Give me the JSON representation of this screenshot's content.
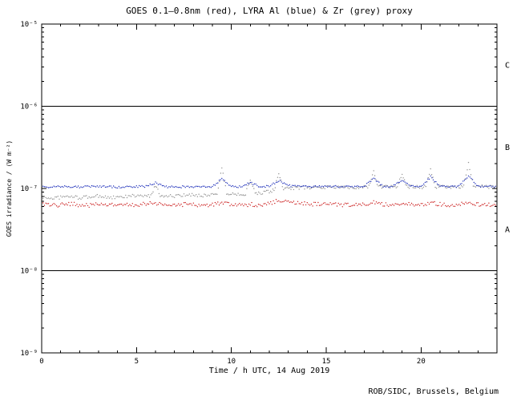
{
  "footer": {
    "credit": "ROB/SIDC, Brussels, Belgium"
  },
  "chart_data": {
    "type": "line",
    "title": "GOES 0.1–0.8nm (red), LYRA Al (blue) & Zr (grey) proxy",
    "xlabel": "Time / h UTC, 14 Aug 2019",
    "ylabel": "GOES irradiance / (W m⁻²)",
    "xlim": [
      0,
      24
    ],
    "ylim_exponents": [
      -9,
      -5
    ],
    "grid": false,
    "x_major_ticks": [
      0,
      5,
      10,
      15,
      20
    ],
    "x_minor_step": 1,
    "y_ticks": [
      {
        "label": "10⁻⁵",
        "exp": -5
      },
      {
        "label": "10⁻⁶",
        "exp": -6
      },
      {
        "label": "10⁻⁷",
        "exp": -7
      },
      {
        "label": "10⁻⁸",
        "exp": -8
      },
      {
        "label": "10⁻⁹",
        "exp": -9
      }
    ],
    "hlines": [
      1e-06,
      1e-08
    ],
    "flare_classes": [
      {
        "label": "C",
        "value": 3.16e-06
      },
      {
        "label": "B",
        "value": 3.16e-07
      },
      {
        "label": "A",
        "value": 3.16e-08
      }
    ],
    "colors": {
      "red": "#cc2222",
      "blue": "#2233bb",
      "grey": "#909090",
      "axis": "#000000",
      "background": "#ffffff"
    },
    "series": [
      {
        "name": "LYRA Zr proxy",
        "color_key": "grey",
        "noise": 0.02,
        "x": [
          0,
          0.5,
          1,
          1.5,
          2,
          2.5,
          3,
          3.5,
          4,
          4.5,
          5,
          5.5,
          5.75,
          6,
          6.25,
          6.5,
          7,
          7.5,
          8,
          8.5,
          9,
          9.25,
          9.5,
          9.75,
          10,
          10.5,
          10.75,
          11,
          11.25,
          11.5,
          12,
          12.25,
          12.5,
          12.75,
          13,
          13.5,
          14,
          14.5,
          15,
          15.5,
          16,
          16.5,
          17,
          17.25,
          17.5,
          17.75,
          18,
          18.5,
          18.75,
          19,
          19.25,
          19.5,
          20,
          20.25,
          20.5,
          20.75,
          21,
          21.5,
          22,
          22.25,
          22.5,
          22.75,
          23,
          23.5,
          24
        ],
        "values": [
          7.8e-08,
          7.6e-08,
          7.8e-08,
          8e-08,
          7.7e-08,
          7.9e-08,
          8.1e-08,
          7.8e-08,
          7.7e-08,
          8e-08,
          8.2e-08,
          8e-08,
          8.1e-08,
          1.1e-07,
          8.2e-08,
          8.2e-08,
          8e-08,
          8.2e-08,
          8.4e-08,
          8.2e-08,
          8.5e-08,
          8.6e-08,
          1.8e-07,
          8.6e-08,
          8.6e-08,
          8.5e-08,
          8.6e-08,
          1.3e-07,
          8.7e-08,
          8.6e-08,
          9.2e-08,
          9.5e-08,
          1.5e-07,
          9.8e-08,
          1e-07,
          1.02e-07,
          1.03e-07,
          1.02e-07,
          1.04e-07,
          1.03e-07,
          1.04e-07,
          1.03e-07,
          1.05e-07,
          1.05e-07,
          1.6e-07,
          1.05e-07,
          1.05e-07,
          1.04e-07,
          1.05e-07,
          1.5e-07,
          1.05e-07,
          1.05e-07,
          1.04e-07,
          1.05e-07,
          1.7e-07,
          1.05e-07,
          1.05e-07,
          1.04e-07,
          1.05e-07,
          1.06e-07,
          2e-07,
          1.06e-07,
          1.06e-07,
          1.05e-07,
          1.04e-07
        ]
      },
      {
        "name": "GOES 0.1-0.8nm",
        "color_key": "red",
        "noise": 0.024,
        "x": [
          0,
          0.5,
          1,
          1.5,
          2,
          2.5,
          3,
          3.5,
          4,
          4.5,
          5,
          5.5,
          6,
          6.5,
          7,
          7.5,
          8,
          8.5,
          9,
          9.5,
          10,
          10.5,
          11,
          11.5,
          12,
          12.5,
          13,
          13.5,
          14,
          14.5,
          15,
          15.5,
          16,
          16.5,
          17,
          17.5,
          18,
          18.5,
          19,
          19.5,
          20,
          20.5,
          21,
          21.5,
          22,
          22.5,
          23,
          23.5,
          24
        ],
        "values": [
          6.4e-08,
          6.2e-08,
          6.3e-08,
          6.5e-08,
          6.3e-08,
          6.2e-08,
          6.4e-08,
          6.3e-08,
          6.2e-08,
          6.4e-08,
          6.3e-08,
          6.5e-08,
          6.6e-08,
          6.3e-08,
          6.2e-08,
          6.4e-08,
          6.3e-08,
          6.2e-08,
          6.4e-08,
          6.6e-08,
          6.3e-08,
          6.2e-08,
          6.4e-08,
          6.3e-08,
          6.6e-08,
          7.2e-08,
          6.8e-08,
          6.6e-08,
          6.5e-08,
          6.4e-08,
          6.5e-08,
          6.4e-08,
          6.3e-08,
          6.4e-08,
          6.5e-08,
          6.8e-08,
          6.4e-08,
          6.3e-08,
          6.6e-08,
          6.4e-08,
          6.3e-08,
          6.8e-08,
          6.4e-08,
          6.3e-08,
          6.4e-08,
          6.9e-08,
          6.4e-08,
          6.3e-08,
          6.3e-08
        ]
      },
      {
        "name": "LYRA Al proxy",
        "color_key": "blue",
        "noise": 0.012,
        "x": [
          0,
          0.5,
          1,
          1.5,
          2,
          2.5,
          3,
          3.5,
          4,
          4.5,
          5,
          5.5,
          6,
          6.5,
          7,
          7.5,
          8,
          8.5,
          9,
          9.5,
          10,
          10.5,
          11,
          11.5,
          12,
          12.5,
          13,
          13.5,
          14,
          14.5,
          15,
          15.5,
          16,
          16.5,
          17,
          17.5,
          18,
          18.5,
          19,
          19.5,
          20,
          20.5,
          21,
          21.5,
          22,
          22.5,
          23,
          23.5,
          24
        ],
        "values": [
          1.05e-07,
          1.04e-07,
          1.05e-07,
          1.05e-07,
          1.04e-07,
          1.05e-07,
          1.06e-07,
          1.05e-07,
          1.04e-07,
          1.05e-07,
          1.05e-07,
          1.06e-07,
          1.18e-07,
          1.05e-07,
          1.04e-07,
          1.05e-07,
          1.05e-07,
          1.04e-07,
          1.06e-07,
          1.3e-07,
          1.06e-07,
          1.05e-07,
          1.18e-07,
          1.05e-07,
          1.06e-07,
          1.25e-07,
          1.08e-07,
          1.06e-07,
          1.05e-07,
          1.06e-07,
          1.05e-07,
          1.06e-07,
          1.05e-07,
          1.05e-07,
          1.06e-07,
          1.32e-07,
          1.06e-07,
          1.05e-07,
          1.28e-07,
          1.06e-07,
          1.05e-07,
          1.38e-07,
          1.06e-07,
          1.05e-07,
          1.06e-07,
          1.42e-07,
          1.06e-07,
          1.05e-07,
          1.05e-07
        ]
      }
    ]
  }
}
